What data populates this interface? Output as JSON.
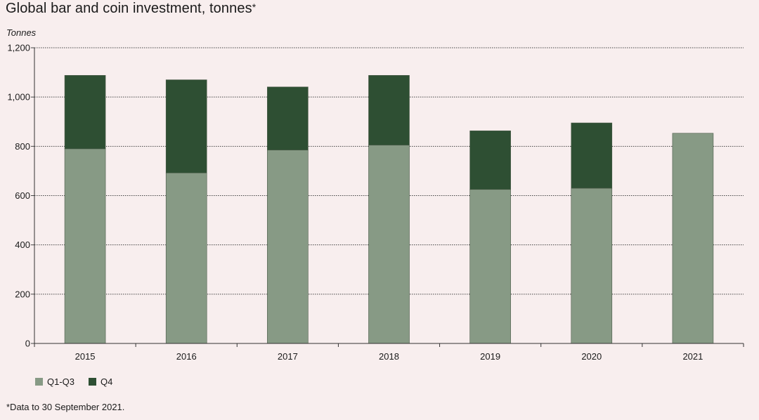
{
  "title": "Global bar and coin investment, tonnes",
  "title_mark": "*",
  "footnote": "*Data to 30 September 2021.",
  "colors": {
    "background": "#f8eeee",
    "q1q3": "#879a85",
    "q4": "#2e4f33",
    "grid": "#444444"
  },
  "chart_data": {
    "type": "bar",
    "stacked": true,
    "title": "Global bar and coin investment, tonnes*",
    "ylabel": "Tonnes",
    "xlabel": "",
    "ylim": [
      0,
      1200
    ],
    "yticks": [
      0,
      200,
      400,
      600,
      800,
      1000,
      1200
    ],
    "ytick_labels": [
      "0",
      "200",
      "400",
      "600",
      "800",
      "1,000",
      "1,200"
    ],
    "categories": [
      "2015",
      "2016",
      "2017",
      "2018",
      "2019",
      "2020",
      "2021"
    ],
    "series": [
      {
        "name": "Q1-Q3",
        "values": [
          790,
          692,
          785,
          805,
          625,
          630,
          853
        ]
      },
      {
        "name": "Q4",
        "values": [
          298,
          378,
          256,
          283,
          238,
          265,
          0
        ]
      }
    ],
    "grid": true,
    "grid_style": "dotted",
    "legend_position": "bottom-left"
  }
}
